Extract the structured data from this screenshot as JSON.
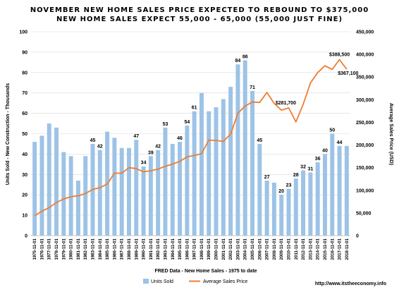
{
  "chart_data": {
    "type": "bar+line",
    "title": "NOVEMBER  NEW HOME SALES PRICE EXPECTED TO REBOUND TO $375,000",
    "subtitle": "NEW HOME SALES EXPECT 55,000 - 65,000 (55,000 JUST FINE)",
    "xlabel": "FRED Data - New Home Sales - 1975 to date",
    "ylabel_left": "Units Sold - New Construction - Thousands",
    "ylabel_right": "Average Sales Price (USD)",
    "ylim_left": [
      0,
      100
    ],
    "ylim_right": [
      0,
      450000
    ],
    "yticks_left": [
      "0",
      "10",
      "20",
      "30",
      "40",
      "50",
      "60",
      "70",
      "80",
      "90",
      "100"
    ],
    "yticks_right": [
      "0",
      "50,000",
      "100,000",
      "150,000",
      "200,000",
      "250,000",
      "300,000",
      "350,000",
      "400,000",
      "450,000"
    ],
    "grid": true,
    "legend_position": "bottom",
    "categories": [
      "1975-11-01",
      "1976-11-01",
      "1977-11-01",
      "1978-11-01",
      "1979-11-01",
      "1980-11-01",
      "1981-11-01",
      "1982-11-01",
      "1983-11-01",
      "1984-11-01",
      "1985-11-01",
      "1986-11-01",
      "1987-11-01",
      "1988-11-01",
      "1989-11-01",
      "1990-11-01",
      "1991-11-01",
      "1992-11-01",
      "1993-11-01",
      "1994-11-01",
      "1995-11-01",
      "1996-11-01",
      "1997-11-01",
      "1998-11-01",
      "1999-11-01",
      "2000-11-01",
      "2001-11-01",
      "2002-11-01",
      "2003-11-01",
      "2004-11-01",
      "2005-11-01",
      "2006-11-01",
      "2007-11-01",
      "2008-11-01",
      "2009-11-01",
      "2010-11-01",
      "2011-11-01",
      "2012-11-01",
      "2013-11-01",
      "2014-11-01",
      "2015-11-01",
      "2016-11-01",
      "2017-11-01",
      "2018-11-01"
    ],
    "series": [
      {
        "name": "Units Sold",
        "type": "bar",
        "axis": "left",
        "color": "#9dc3e6",
        "values": [
          46,
          49,
          55,
          53,
          41,
          39,
          27,
          39,
          45,
          42,
          51,
          48,
          43,
          43,
          47,
          34,
          39,
          42,
          53,
          45,
          46,
          54,
          61,
          70,
          61,
          63,
          67,
          73,
          84,
          86,
          71,
          45,
          27,
          26,
          20,
          23,
          28,
          32,
          31,
          36,
          40,
          50,
          44,
          44
        ],
        "labels": [
          "",
          "",
          "",
          "",
          "",
          "",
          "",
          "",
          "45",
          "42",
          "",
          "",
          "",
          "",
          "47",
          "34",
          "39",
          "42",
          "53",
          "",
          "46",
          "54",
          "61",
          "",
          "",
          "",
          "",
          "",
          "84",
          "86",
          "71",
          "45",
          "27",
          "",
          "20",
          "23",
          "28",
          "32",
          "31",
          "36",
          "40",
          "50",
          "44",
          ""
        ]
      },
      {
        "name": "Average Sales Price",
        "type": "line",
        "axis": "right",
        "color": "#ed7d31",
        "values": [
          44000,
          54000,
          62000,
          73000,
          81000,
          86000,
          88000,
          93000,
          102000,
          106000,
          114000,
          138000,
          138000,
          150000,
          148000,
          141000,
          143000,
          147000,
          153000,
          158000,
          164000,
          174000,
          177000,
          181000,
          211000,
          210000,
          208000,
          224000,
          270000,
          286000,
          295000,
          294000,
          316000,
          292000,
          277000,
          282000,
          251000,
          290000,
          337000,
          360000,
          375000,
          367000,
          388500,
          367100
        ]
      }
    ],
    "annotations": [
      {
        "text": "$388,500",
        "x": "2017-11-01",
        "y": 388500
      },
      {
        "text": "$367,100",
        "x": "2018-11-01",
        "y": 367100
      },
      {
        "text": "$281,700",
        "x": "2010-11-01",
        "y": 281700
      }
    ],
    "watermark": "http://www.itstheeconomy.info"
  }
}
